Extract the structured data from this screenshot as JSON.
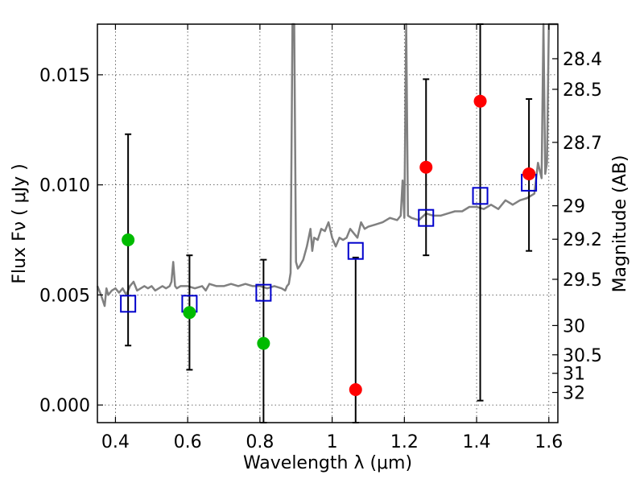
{
  "chart_data": {
    "type": "scatter",
    "xlabel": "Wavelength  λ (μm)",
    "ylabel": "Flux  Fν  ( μJy )",
    "ylabel_right": "Magnitude (AB)",
    "xlim": [
      0.35,
      1.625
    ],
    "ylim": [
      -0.0008,
      0.0173
    ],
    "grid": true,
    "x_ticks": [
      0.4,
      0.6,
      0.8,
      1.0,
      1.2,
      1.4,
      1.6
    ],
    "x_tick_labels": [
      "0.4",
      "0.6",
      "0.8",
      "1",
      "1.2",
      "1.4",
      "1.6"
    ],
    "y_ticks": [
      0.0,
      0.005,
      0.01,
      0.015
    ],
    "y_tick_labels": [
      "0.000",
      "0.005",
      "0.010",
      "0.015"
    ],
    "magnitude_ticks": [
      {
        "label": "28.4",
        "flux": 0.01573
      },
      {
        "label": "28.5",
        "flux": 0.01434
      },
      {
        "label": "28.7",
        "flux": 0.01193
      },
      {
        "label": "29",
        "flux": 0.00905
      },
      {
        "label": "29.2",
        "flux": 0.00753
      },
      {
        "label": "29.5",
        "flux": 0.00571
      },
      {
        "label": "30",
        "flux": 0.00361
      },
      {
        "label": "30.5",
        "flux": 0.00228
      },
      {
        "label": "31",
        "flux": 0.00144
      },
      {
        "label": "32",
        "flux": 0.00057
      }
    ],
    "observed_green": {
      "color": "#00bb00",
      "x": [
        0.435,
        0.605,
        0.81
      ],
      "y": [
        0.0075,
        0.0042,
        0.0028
      ],
      "err_high": [
        0.0123,
        0.0068,
        0.0066
      ],
      "err_low": [
        0.0027,
        0.0016,
        -0.0008
      ]
    },
    "observed_red": {
      "color": "#ff0000",
      "x": [
        1.065,
        1.26,
        1.41,
        1.545
      ],
      "y": [
        0.0007,
        0.0108,
        0.0138,
        0.0105
      ],
      "err_high": [
        0.0067,
        0.0148,
        0.0173,
        0.0139
      ],
      "err_low": [
        -0.0008,
        0.0068,
        0.0002,
        0.007
      ]
    },
    "model_photometry": {
      "color": "#0000cc",
      "x": [
        0.435,
        0.605,
        0.81,
        1.065,
        1.26,
        1.41,
        1.545
      ],
      "y": [
        0.0046,
        0.0046,
        0.0051,
        0.007,
        0.0085,
        0.0095,
        0.0101
      ]
    },
    "spectrum": {
      "color": "#808080",
      "x": [
        0.35,
        0.36,
        0.37,
        0.375,
        0.38,
        0.39,
        0.4,
        0.41,
        0.42,
        0.43,
        0.44,
        0.45,
        0.46,
        0.47,
        0.48,
        0.49,
        0.5,
        0.51,
        0.52,
        0.53,
        0.54,
        0.55,
        0.555,
        0.56,
        0.565,
        0.57,
        0.58,
        0.6,
        0.62,
        0.64,
        0.65,
        0.66,
        0.68,
        0.7,
        0.72,
        0.74,
        0.76,
        0.78,
        0.8,
        0.82,
        0.84,
        0.86,
        0.87,
        0.875,
        0.88,
        0.885,
        0.89,
        0.895,
        0.9,
        0.905,
        0.91,
        0.92,
        0.93,
        0.94,
        0.945,
        0.95,
        0.96,
        0.97,
        0.98,
        0.99,
        1.0,
        1.01,
        1.02,
        1.03,
        1.04,
        1.05,
        1.06,
        1.07,
        1.08,
        1.09,
        1.1,
        1.12,
        1.14,
        1.16,
        1.18,
        1.19,
        1.195,
        1.2,
        1.205,
        1.21,
        1.22,
        1.24,
        1.26,
        1.28,
        1.3,
        1.32,
        1.34,
        1.36,
        1.38,
        1.4,
        1.42,
        1.44,
        1.46,
        1.48,
        1.5,
        1.52,
        1.54,
        1.56,
        1.57,
        1.58,
        1.585,
        1.59,
        1.595,
        1.6,
        1.61,
        1.625
      ],
      "y": [
        0.0054,
        0.005,
        0.0045,
        0.0053,
        0.005,
        0.0052,
        0.0053,
        0.0051,
        0.0053,
        0.005,
        0.0054,
        0.0056,
        0.0052,
        0.0053,
        0.0054,
        0.0053,
        0.0054,
        0.0052,
        0.0053,
        0.0054,
        0.0053,
        0.0054,
        0.0056,
        0.0065,
        0.0054,
        0.0053,
        0.0054,
        0.0054,
        0.0053,
        0.0054,
        0.0052,
        0.0055,
        0.0054,
        0.0054,
        0.0055,
        0.0054,
        0.0055,
        0.0054,
        0.0054,
        0.0053,
        0.0054,
        0.0053,
        0.0052,
        0.0054,
        0.0055,
        0.006,
        0.0173,
        0.0173,
        0.0065,
        0.0062,
        0.0063,
        0.0066,
        0.0072,
        0.008,
        0.007,
        0.0076,
        0.0075,
        0.008,
        0.0079,
        0.0083,
        0.0076,
        0.0072,
        0.0076,
        0.0075,
        0.0076,
        0.008,
        0.0078,
        0.0076,
        0.0083,
        0.008,
        0.0081,
        0.0082,
        0.0083,
        0.0085,
        0.0084,
        0.0086,
        0.0102,
        0.0085,
        0.0173,
        0.0086,
        0.0085,
        0.0084,
        0.0087,
        0.0086,
        0.0086,
        0.0087,
        0.0088,
        0.0088,
        0.009,
        0.009,
        0.0089,
        0.0091,
        0.0089,
        0.0093,
        0.0091,
        0.0093,
        0.0094,
        0.0096,
        0.011,
        0.0103,
        0.0173,
        0.0105,
        0.011,
        0.0173,
        0.0173,
        0.0173
      ]
    }
  }
}
